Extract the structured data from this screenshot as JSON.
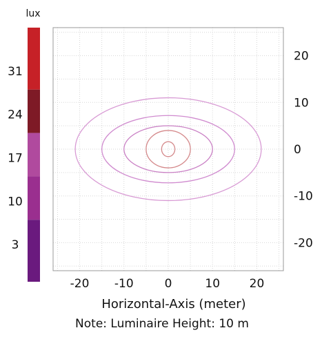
{
  "chart_data": {
    "type": "contour",
    "unit_label": "lux",
    "xlabel": "Horizontal-Axis (meter)",
    "note": "Note: Luminaire Height: 10 m",
    "x_ticks": [
      -20,
      -10,
      0,
      10,
      20
    ],
    "y_ticks": [
      20,
      10,
      0,
      -10,
      -20
    ],
    "xlim": [
      -26,
      26
    ],
    "ylim": [
      -26,
      26
    ],
    "grid": true,
    "colorbar": {
      "tick_labels": [
        31,
        24,
        17,
        10,
        3
      ],
      "bands": [
        {
          "min": 28,
          "max": 38,
          "color": "#c62127"
        },
        {
          "min": 21,
          "max": 28,
          "color": "#7e1a26"
        },
        {
          "min": 14,
          "max": 21,
          "color": "#b04a9e"
        },
        {
          "min": 7,
          "max": 14,
          "color": "#9a2f8f"
        },
        {
          "min": -3,
          "max": 7,
          "color": "#6a1a7e"
        }
      ]
    },
    "contours": [
      {
        "rx": 21,
        "ry": 11,
        "color": "#d89ad4"
      },
      {
        "rx": 15,
        "ry": 7.2,
        "color": "#d08bcf"
      },
      {
        "rx": 10,
        "ry": 5,
        "color": "#c97fc4"
      },
      {
        "rx": 5,
        "ry": 4,
        "color": "#d4888a"
      },
      {
        "rx": 1.5,
        "ry": 1.6,
        "color": "#d4888a"
      }
    ]
  }
}
